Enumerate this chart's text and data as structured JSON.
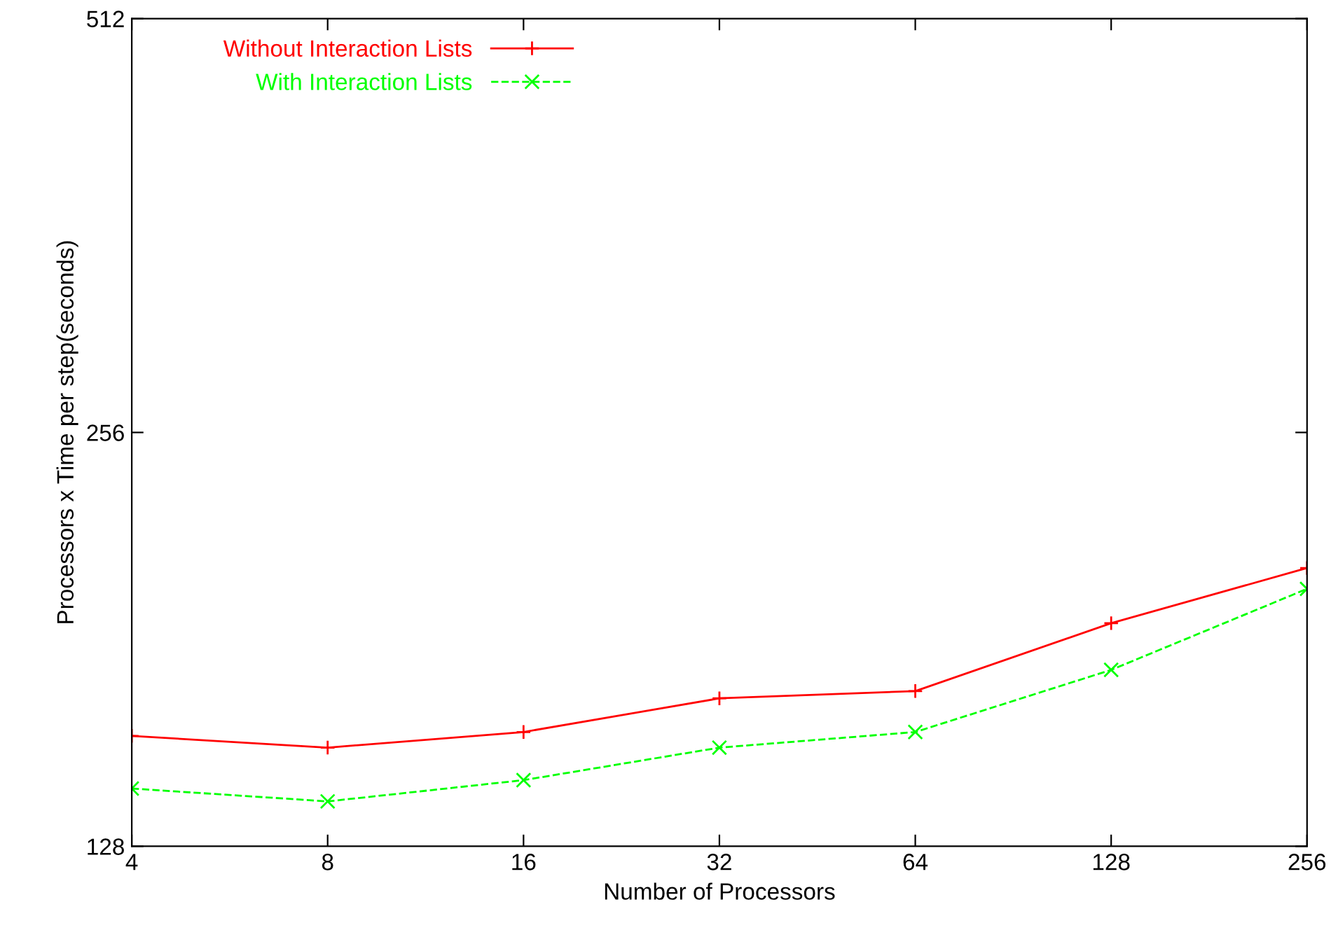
{
  "chart_data": {
    "type": "line",
    "xlabel": "Number of Processors",
    "ylabel": "Processors x Time per step(seconds)",
    "log": "xy",
    "x": [
      4,
      8,
      16,
      32,
      64,
      128,
      256
    ],
    "xlim": [
      4,
      256
    ],
    "xticks": [
      4,
      8,
      16,
      32,
      64,
      128,
      256
    ],
    "ylim": [
      128,
      512
    ],
    "yticks": [
      128,
      256,
      512
    ],
    "grid": false,
    "legend": "top left",
    "series": [
      {
        "name": "Without Interaction Lists",
        "color": "#ff0000",
        "marker": "plus",
        "line_style": "solid",
        "values": [
          154,
          151,
          155,
          164,
          166,
          186,
          204
        ]
      },
      {
        "name": "With Interaction Lists",
        "color": "#00ff00",
        "marker": "cross",
        "line_style": "dashed",
        "values": [
          141,
          138,
          143,
          151,
          155,
          172,
          197
        ]
      }
    ]
  }
}
